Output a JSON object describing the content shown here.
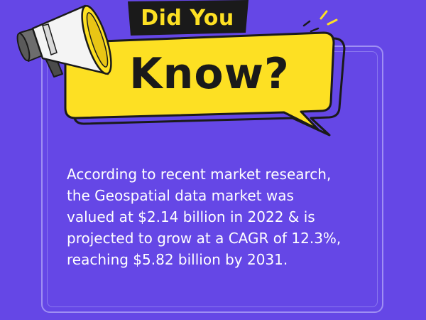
{
  "heading": {
    "line1": "Did You",
    "line2": "Know?"
  },
  "fact": {
    "lines": [
      "According to recent market research,",
      "the Geospatial data market was",
      "valued at $2.14 billion in 2022 & is",
      "projected to grow at a CAGR of 12.3%,",
      "reaching $5.82 billion by 2031."
    ]
  },
  "colors": {
    "background": "#6547e6",
    "frame": "#9f8ff3",
    "bubble_yellow": "#fde023",
    "bubble_outline": "#1a1a1a",
    "text_white": "#ffffff"
  },
  "icons": [
    "megaphone-icon",
    "speech-bubble"
  ]
}
